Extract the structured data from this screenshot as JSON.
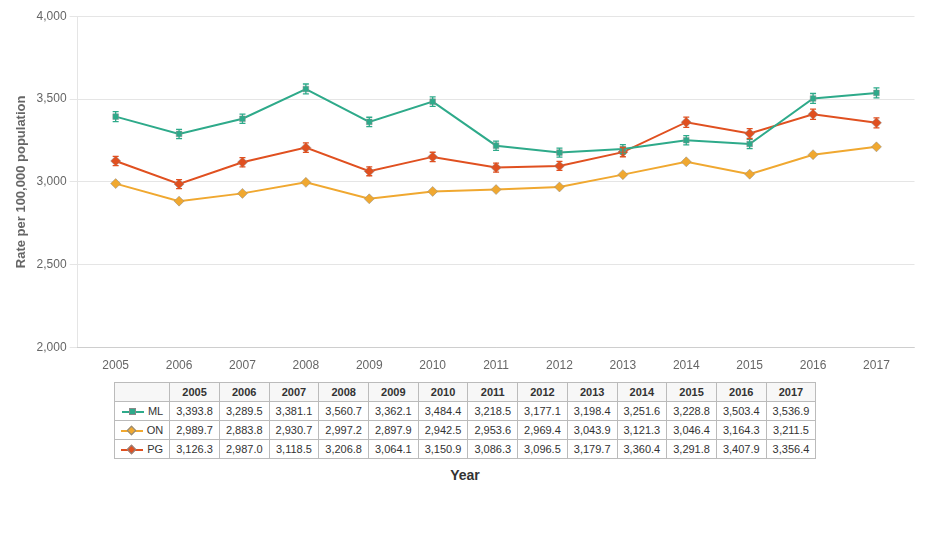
{
  "chart_data": {
    "type": "line",
    "x": [
      2005,
      2006,
      2007,
      2008,
      2009,
      2010,
      2011,
      2012,
      2013,
      2014,
      2015,
      2016,
      2017
    ],
    "series": [
      {
        "name": "ML",
        "color": "#2eaa8a",
        "marker": "square",
        "values": [
          3393.8,
          3289.5,
          3381.1,
          3560.7,
          3362.1,
          3484.4,
          3218.5,
          3177.1,
          3198.4,
          3251.6,
          3228.8,
          3503.4,
          3536.9
        ],
        "errors": [
          30,
          28,
          28,
          30,
          28,
          29,
          28,
          27,
          27,
          28,
          28,
          30,
          30
        ],
        "value_labels": [
          "3,393.8",
          "3,289.5",
          "3,381.1",
          "3,560.7",
          "3,362.1",
          "3,484.4",
          "3,218.5",
          "3,177.1",
          "3,198.4",
          "3,251.6",
          "3,228.8",
          "3,503.4",
          "3,536.9"
        ]
      },
      {
        "name": "ON",
        "color": "#f0a830",
        "marker": "diamond",
        "values": [
          2989.7,
          2883.8,
          2930.7,
          2997.2,
          2897.9,
          2942.5,
          2953.6,
          2969.4,
          3043.9,
          3121.3,
          3046.4,
          3164.3,
          3211.5
        ],
        "errors": [
          8,
          8,
          8,
          8,
          8,
          8,
          8,
          8,
          8,
          9,
          9,
          9,
          9
        ],
        "value_labels": [
          "2,989.7",
          "2,883.8",
          "2,930.7",
          "2,997.2",
          "2,897.9",
          "2,942.5",
          "2,953.6",
          "2,969.4",
          "3,043.9",
          "3,121.3",
          "3,046.4",
          "3,164.3",
          "3,211.5"
        ]
      },
      {
        "name": "PG",
        "color": "#e05020",
        "marker": "diamond",
        "values": [
          3126.3,
          2987.0,
          3118.5,
          3206.8,
          3064.1,
          3150.9,
          3086.3,
          3096.5,
          3179.7,
          3360.4,
          3291.8,
          3407.9,
          3356.4
        ],
        "errors": [
          28,
          27,
          28,
          29,
          27,
          28,
          27,
          27,
          28,
          31,
          30,
          31,
          30
        ],
        "value_labels": [
          "3,126.3",
          "2,987.0",
          "3,118.5",
          "3,206.8",
          "3,064.1",
          "3,150.9",
          "3,086.3",
          "3,096.5",
          "3,179.7",
          "3,360.4",
          "3,291.8",
          "3,407.9",
          "3,356.4"
        ]
      }
    ],
    "ylabel": "Rate per 100,000 population",
    "xlabel": "Year",
    "xlim": [
      2004.4,
      2017.6
    ],
    "xticks": [
      2005,
      2006,
      2007,
      2008,
      2009,
      2010,
      2011,
      2012,
      2013,
      2014,
      2015,
      2016,
      2017
    ],
    "ylim": [
      2000,
      4000
    ],
    "yticks": [
      {
        "value": 2000,
        "label": "2,000"
      },
      {
        "value": 2500,
        "label": "2,500"
      },
      {
        "value": 3000,
        "label": "3,000"
      },
      {
        "value": 3500,
        "label": "3,500"
      },
      {
        "value": 4000,
        "label": "4,000"
      }
    ],
    "grid": "y"
  }
}
